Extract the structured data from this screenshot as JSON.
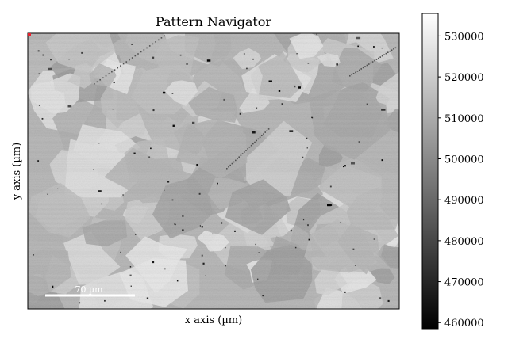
{
  "chart_data": {
    "type": "heatmap",
    "title": "Pattern Navigator",
    "xlabel": "x axis (µm)",
    "ylabel": "y axis (µm)",
    "scalebar_label": "70 µm",
    "colorbar": {
      "ticks": [
        460000,
        470000,
        480000,
        490000,
        500000,
        510000,
        520000,
        530000
      ],
      "tick_labels": [
        "460000",
        "470000",
        "480000",
        "490000",
        "500000",
        "510000",
        "520000",
        "530000"
      ],
      "range": [
        458500,
        535500
      ],
      "colormap": "gray"
    },
    "marker_color": "#e8222e",
    "grid": false
  }
}
